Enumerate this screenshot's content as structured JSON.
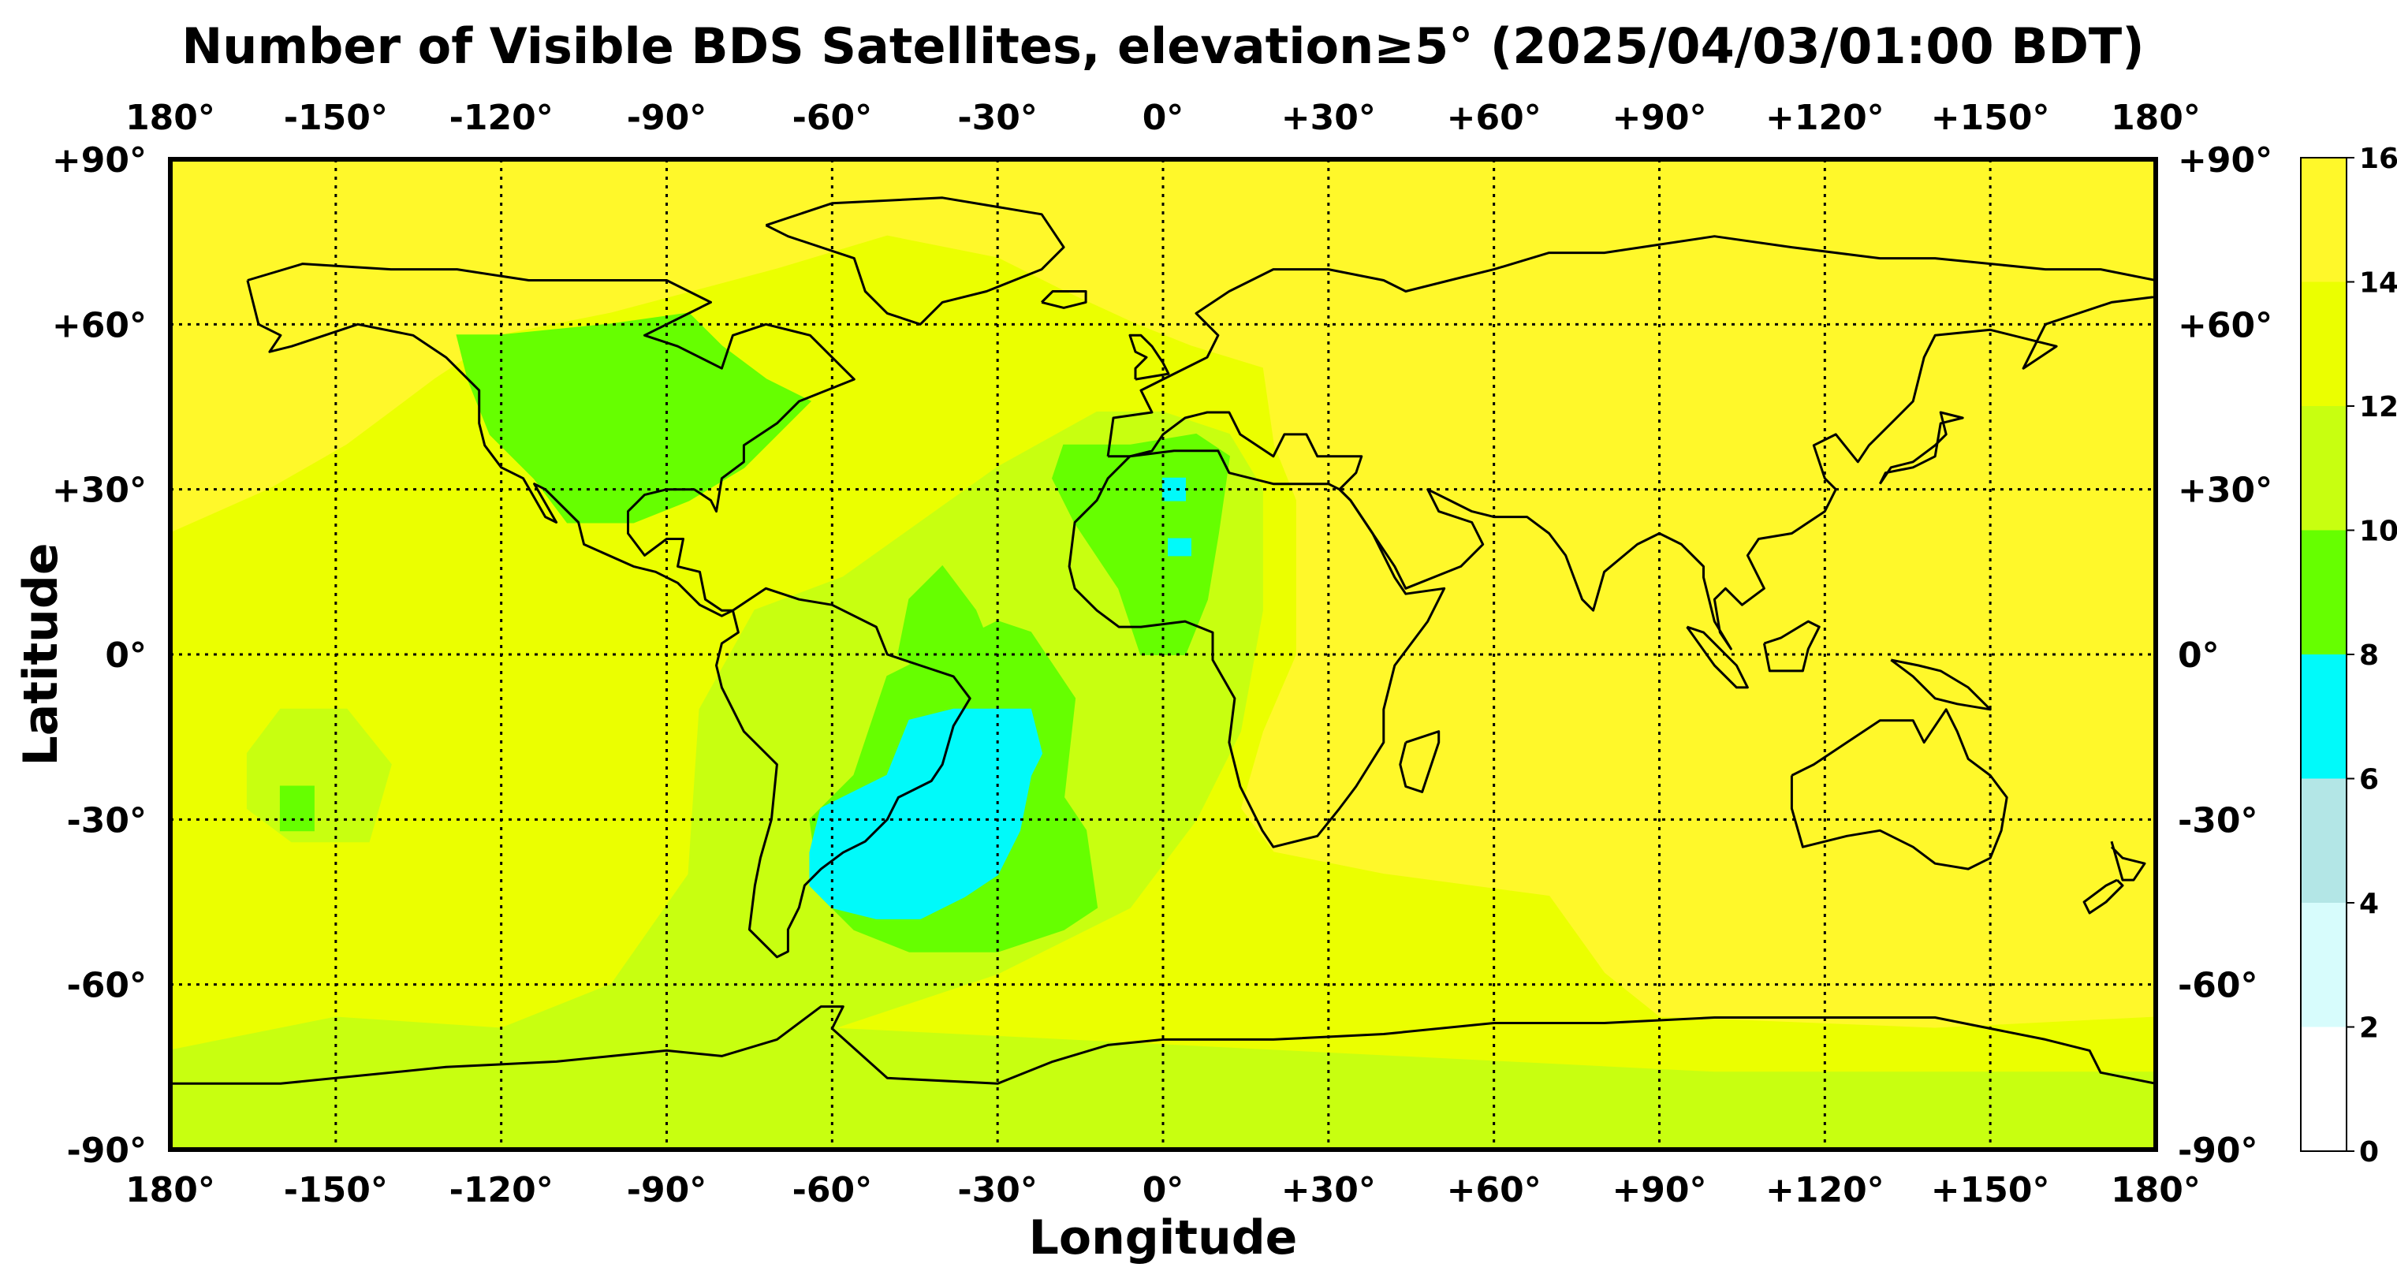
{
  "map": {
    "title": "Number of Visible BDS Satellites, elevation≥5° (2025/04/03/01:00 BDT)",
    "xlabel": "Longitude",
    "ylabel": "Latitude",
    "lon_ticks": [
      "180°",
      "-150°",
      "-120°",
      "-90°",
      "-60°",
      "-30°",
      "0°",
      "+30°",
      "+60°",
      "+90°",
      "+120°",
      "+150°",
      "180°"
    ],
    "lat_ticks": [
      "+90°",
      "+60°",
      "+30°",
      "0°",
      "-30°",
      "-60°",
      "-90°"
    ],
    "projection": "plate carree, longitude -180 to 180, latitude -90 to 90",
    "grid": "dotted at every 30°"
  },
  "colorbar": {
    "ticks": [
      "0",
      "2",
      "4",
      "6",
      "8",
      "10",
      "12",
      "14",
      "16"
    ],
    "bins": [
      {
        "range": [
          0,
          2
        ],
        "color": "#ffffff"
      },
      {
        "range": [
          2,
          4
        ],
        "color": "#d7fcfc"
      },
      {
        "range": [
          4,
          6
        ],
        "color": "#b3e6e6"
      },
      {
        "range": [
          6,
          8
        ],
        "color": "#00fafa"
      },
      {
        "range": [
          8,
          10
        ],
        "color": "#66ff00"
      },
      {
        "range": [
          10,
          12
        ],
        "color": "#c8ff10"
      },
      {
        "range": [
          12,
          14
        ],
        "color": "#ebff00"
      },
      {
        "range": [
          14,
          16
        ],
        "color": "#fff82a"
      }
    ]
  },
  "regions": [
    {
      "category": "12-14",
      "note": "broad yellow-green belt over central/south Pacific and Atlantic"
    },
    {
      "category": "10-12",
      "note": "light green over Atlantic, South America, Southern Ocean"
    },
    {
      "category": "8-10",
      "note": "green over North America, tropical Atlantic, NW Africa, South Atlantic"
    },
    {
      "category": "6-8",
      "note": "cyan over south-west Atlantic / Argentina and small patch in Algeria"
    },
    {
      "category": "14-16",
      "note": "yellow elsewhere incl. Asia, Australia, Indian Ocean, polar cap"
    }
  ]
}
